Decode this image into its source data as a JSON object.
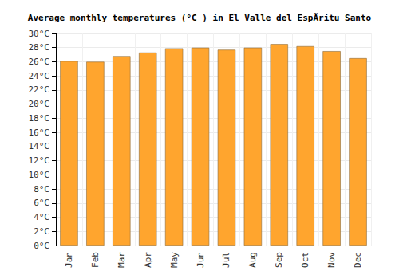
{
  "chart_data": {
    "type": "bar",
    "title": "Average monthly temperatures (°C ) in El Valle del EspÃritu Santo",
    "categories": [
      "Jan",
      "Feb",
      "Mar",
      "Apr",
      "May",
      "Jun",
      "Jul",
      "Aug",
      "Sep",
      "Oct",
      "Nov",
      "Dec"
    ],
    "values": [
      26.1,
      26.0,
      26.8,
      27.3,
      27.9,
      28.0,
      27.7,
      28.0,
      28.5,
      28.2,
      27.5,
      26.5
    ],
    "color": "#ffa52e",
    "ylim": [
      0,
      30
    ],
    "yticks": [
      {
        "value": 0,
        "label": "0°C"
      },
      {
        "value": 2,
        "label": "2°C"
      },
      {
        "value": 4,
        "label": "4°C"
      },
      {
        "value": 6,
        "label": "6°C"
      },
      {
        "value": 8,
        "label": "8°C"
      },
      {
        "value": 10,
        "label": "10°C"
      },
      {
        "value": 12,
        "label": "12°C"
      },
      {
        "value": 14,
        "label": "14°C"
      },
      {
        "value": 16,
        "label": "16°C"
      },
      {
        "value": 18,
        "label": "18°C"
      },
      {
        "value": 20,
        "label": "20°C"
      },
      {
        "value": 22,
        "label": "22°C"
      },
      {
        "value": 24,
        "label": "24°C"
      },
      {
        "value": 26,
        "label": "26°C"
      },
      {
        "value": 28,
        "label": "28°C"
      },
      {
        "value": 30,
        "label": "30°C"
      }
    ],
    "grid": true
  }
}
